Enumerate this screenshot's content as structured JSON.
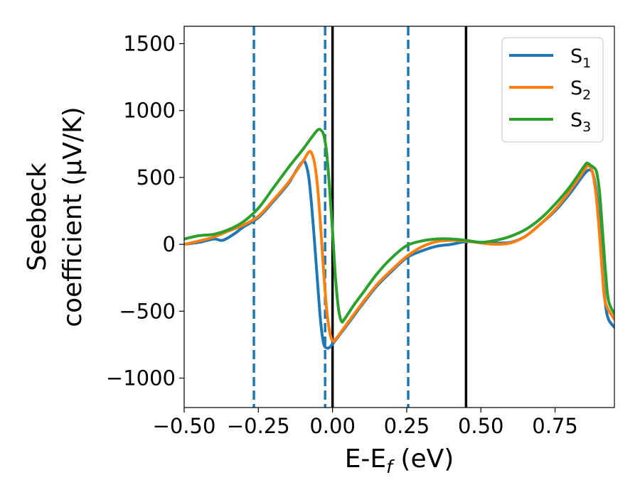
{
  "chart_data": {
    "type": "line",
    "xlabel": {
      "base": "E-E",
      "sub": "f",
      "tail": " (eV)"
    },
    "ylabel": {
      "line1": "Seebeck",
      "line2": "coefficient  (μV/K)"
    },
    "xlim": [
      -0.5,
      0.95
    ],
    "ylim": [
      -1220,
      1630
    ],
    "xticks": [
      -0.5,
      -0.25,
      0.0,
      0.25,
      0.5,
      0.75
    ],
    "xtick_labels": [
      "−0.50",
      "−0.25",
      "0.00",
      "0.25",
      "0.50",
      "0.75"
    ],
    "yticks": [
      -1000,
      -500,
      0,
      500,
      1000,
      1500
    ],
    "ytick_labels": [
      "−1000",
      "−500",
      "0",
      "500",
      "1000",
      "1500"
    ],
    "grid": false,
    "legend_position": "top-right",
    "vlines_dashed": {
      "color": "#1f77b4",
      "x": [
        -0.265,
        -0.025,
        0.255
      ]
    },
    "vlines_solid": {
      "color": "#000000",
      "x": [
        0.0,
        0.45
      ]
    },
    "series": [
      {
        "name": "S",
        "sub": "1",
        "color": "#1f77b4",
        "points": [
          [
            -0.5,
            0
          ],
          [
            -0.45,
            15
          ],
          [
            -0.4,
            40
          ],
          [
            -0.37,
            30
          ],
          [
            -0.33,
            80
          ],
          [
            -0.3,
            130
          ],
          [
            -0.25,
            200
          ],
          [
            -0.2,
            320
          ],
          [
            -0.15,
            450
          ],
          [
            -0.12,
            560
          ],
          [
            -0.1,
            620
          ],
          [
            -0.09,
            600
          ],
          [
            -0.08,
            500
          ],
          [
            -0.07,
            280
          ],
          [
            -0.06,
            0
          ],
          [
            -0.05,
            -300
          ],
          [
            -0.04,
            -580
          ],
          [
            -0.03,
            -740
          ],
          [
            -0.02,
            -775
          ],
          [
            -0.01,
            -770
          ],
          [
            0.0,
            -745
          ],
          [
            0.05,
            -600
          ],
          [
            0.1,
            -450
          ],
          [
            0.15,
            -310
          ],
          [
            0.2,
            -200
          ],
          [
            0.25,
            -100
          ],
          [
            0.3,
            -50
          ],
          [
            0.35,
            -15
          ],
          [
            0.4,
            0
          ],
          [
            0.45,
            20
          ],
          [
            0.5,
            15
          ],
          [
            0.55,
            10
          ],
          [
            0.6,
            15
          ],
          [
            0.65,
            60
          ],
          [
            0.7,
            150
          ],
          [
            0.75,
            250
          ],
          [
            0.8,
            380
          ],
          [
            0.85,
            530
          ],
          [
            0.87,
            555
          ],
          [
            0.88,
            510
          ],
          [
            0.89,
            380
          ],
          [
            0.9,
            130
          ],
          [
            0.91,
            -200
          ],
          [
            0.92,
            -450
          ],
          [
            0.93,
            -560
          ],
          [
            0.95,
            -620
          ]
        ]
      },
      {
        "name": "S",
        "sub": "2",
        "color": "#ff7f0e",
        "points": [
          [
            -0.5,
            0
          ],
          [
            -0.45,
            25
          ],
          [
            -0.4,
            55
          ],
          [
            -0.35,
            100
          ],
          [
            -0.3,
            145
          ],
          [
            -0.25,
            210
          ],
          [
            -0.2,
            330
          ],
          [
            -0.15,
            460
          ],
          [
            -0.1,
            620
          ],
          [
            -0.08,
            690
          ],
          [
            -0.07,
            680
          ],
          [
            -0.06,
            600
          ],
          [
            -0.05,
            420
          ],
          [
            -0.04,
            130
          ],
          [
            -0.03,
            -200
          ],
          [
            -0.02,
            -480
          ],
          [
            -0.01,
            -650
          ],
          [
            0.0,
            -720
          ],
          [
            0.01,
            -710
          ],
          [
            0.05,
            -590
          ],
          [
            0.1,
            -440
          ],
          [
            0.15,
            -300
          ],
          [
            0.2,
            -190
          ],
          [
            0.25,
            -90
          ],
          [
            0.3,
            -20
          ],
          [
            0.35,
            20
          ],
          [
            0.4,
            30
          ],
          [
            0.45,
            25
          ],
          [
            0.5,
            10
          ],
          [
            0.55,
            0
          ],
          [
            0.6,
            10
          ],
          [
            0.65,
            60
          ],
          [
            0.7,
            150
          ],
          [
            0.75,
            260
          ],
          [
            0.8,
            400
          ],
          [
            0.85,
            560
          ],
          [
            0.86,
            585
          ],
          [
            0.87,
            575
          ],
          [
            0.88,
            500
          ],
          [
            0.89,
            330
          ],
          [
            0.9,
            70
          ],
          [
            0.91,
            -230
          ],
          [
            0.92,
            -440
          ],
          [
            0.95,
            -560
          ]
        ]
      },
      {
        "name": "S",
        "sub": "3",
        "color": "#2ca02c",
        "points": [
          [
            -0.5,
            40
          ],
          [
            -0.45,
            65
          ],
          [
            -0.4,
            75
          ],
          [
            -0.35,
            110
          ],
          [
            -0.3,
            170
          ],
          [
            -0.25,
            270
          ],
          [
            -0.2,
            420
          ],
          [
            -0.15,
            570
          ],
          [
            -0.1,
            710
          ],
          [
            -0.07,
            800
          ],
          [
            -0.05,
            855
          ],
          [
            -0.04,
            855
          ],
          [
            -0.03,
            820
          ],
          [
            -0.02,
            690
          ],
          [
            -0.01,
            420
          ],
          [
            0.0,
            100
          ],
          [
            0.01,
            -250
          ],
          [
            0.02,
            -480
          ],
          [
            0.03,
            -575
          ],
          [
            0.04,
            -560
          ],
          [
            0.07,
            -460
          ],
          [
            0.1,
            -370
          ],
          [
            0.15,
            -220
          ],
          [
            0.2,
            -100
          ],
          [
            0.25,
            -10
          ],
          [
            0.3,
            25
          ],
          [
            0.35,
            40
          ],
          [
            0.4,
            40
          ],
          [
            0.45,
            30
          ],
          [
            0.5,
            15
          ],
          [
            0.55,
            30
          ],
          [
            0.6,
            60
          ],
          [
            0.65,
            110
          ],
          [
            0.7,
            190
          ],
          [
            0.75,
            300
          ],
          [
            0.8,
            430
          ],
          [
            0.85,
            590
          ],
          [
            0.86,
            605
          ],
          [
            0.87,
            590
          ],
          [
            0.88,
            575
          ],
          [
            0.89,
            540
          ],
          [
            0.9,
            390
          ],
          [
            0.91,
            100
          ],
          [
            0.92,
            -200
          ],
          [
            0.93,
            -420
          ],
          [
            0.95,
            -520
          ]
        ]
      }
    ]
  }
}
